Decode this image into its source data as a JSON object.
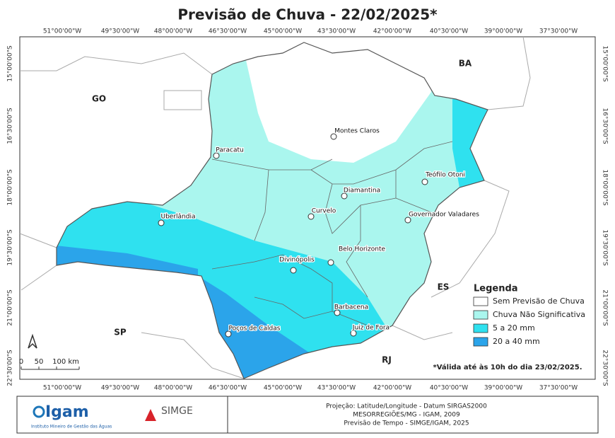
{
  "title": "Previsão de Chuva - 22/02/2025*",
  "lon_labels": [
    "51°00'00\"W",
    "49°30'00\"W",
    "48°00'00\"W",
    "46°30'00\"W",
    "45°00'00\"W",
    "43°30'00\"W",
    "42°00'00\"W",
    "40°30'00\"W",
    "39°00'00\"W",
    "37°30'00\"W"
  ],
  "lat_labels": [
    "15°00'00\"S",
    "16°30'00\"S",
    "18°00'00\"S",
    "19°30'00\"S",
    "21°00'00\"S",
    "22°30'00\"S"
  ],
  "states": [
    "GO",
    "BA",
    "ES",
    "SP",
    "RJ"
  ],
  "cities": [
    "Montes Claros",
    "Paracatu",
    "Teófilo Otoni",
    "Diamantina",
    "Curvelo",
    "Governador Valadares",
    "Uberlândia",
    "Belo Horizonte",
    "Divinópolis",
    "Barbacena",
    "Juiz de Fora",
    "Poços de Caldas"
  ],
  "legend": {
    "title": "Legenda",
    "items": [
      {
        "label": "Sem Previsão de Chuva",
        "color": "#ffffff"
      },
      {
        "label": "Chuva Não Significativa",
        "color": "#aaf6ee"
      },
      {
        "label": "5 a 20 mm",
        "color": "#2fe1ef"
      },
      {
        "label": "20 a 40 mm",
        "color": "#2ba4ea"
      }
    ]
  },
  "scale": [
    "0",
    "50",
    "100 km"
  ],
  "note": "*Válida até às 10h do dia 23/02/2025.",
  "footer": {
    "logo1": "Igam",
    "logo1_sub": "Instituto Mineiro de Gestão das Águas",
    "logo2": "SIMGE",
    "credits": [
      "Projeção: Latitude/Longitude - Datum SIRGAS2000",
      "MESORREGIÕES/MG - IGAM, 2009",
      "Previsão de Tempo - SIMGE/IGAM, 2025"
    ]
  }
}
